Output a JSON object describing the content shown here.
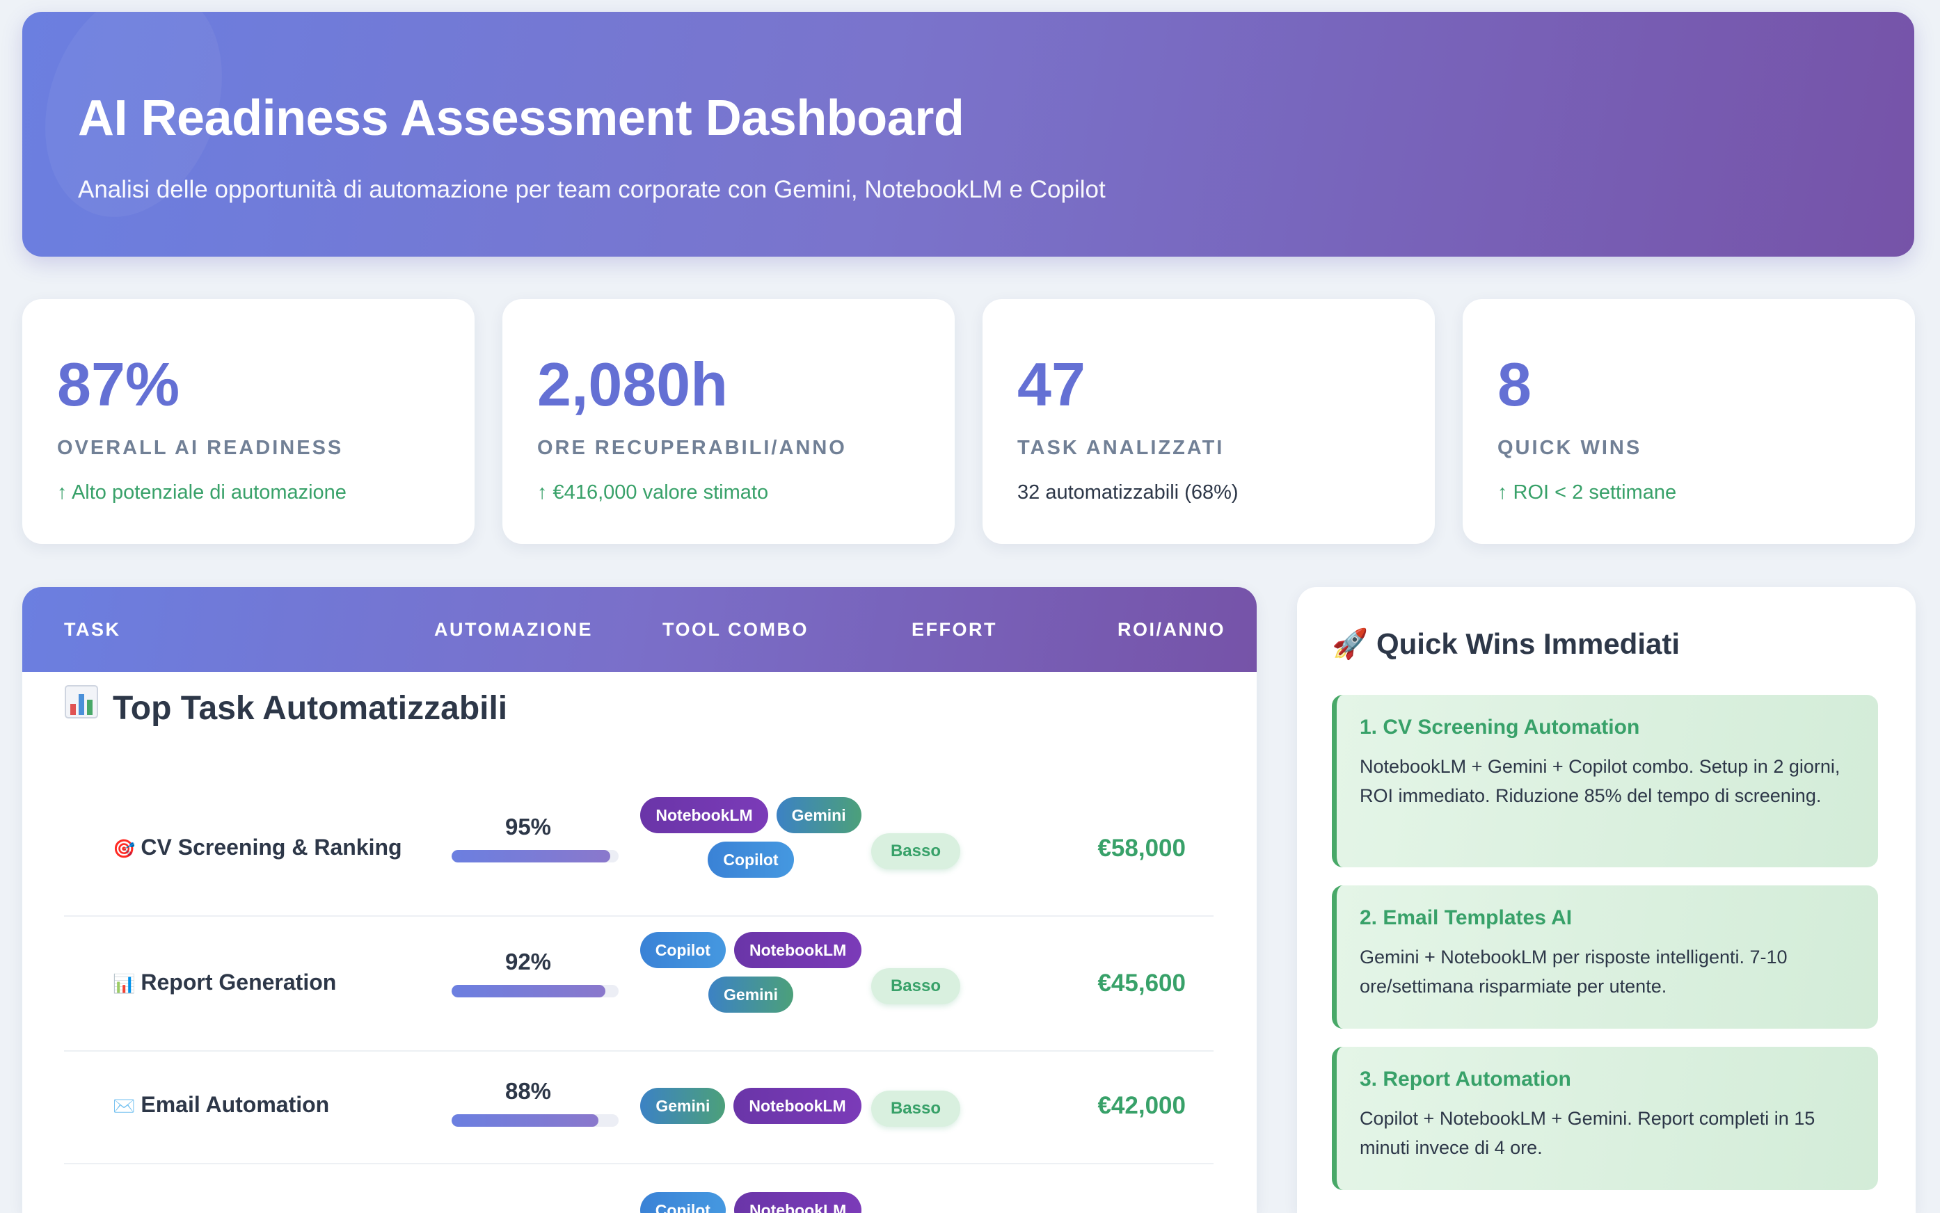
{
  "header": {
    "title": "AI Readiness Assessment Dashboard",
    "subtitle": "Analisi delle opportunità di automazione per team corporate con Gemini, NotebookLM e Copilot"
  },
  "stats": [
    {
      "value": "87%",
      "label": "OVERALL AI READINESS",
      "sub": "↑ Alto potenziale di automazione"
    },
    {
      "value": "2,080h",
      "label": "ORE RECUPERABILI/ANNO",
      "sub": "↑ €416,000 valore stimato"
    },
    {
      "value": "47",
      "label": "TASK ANALIZZATI",
      "sub": "32 automatizzabili (68%)"
    },
    {
      "value": "8",
      "label": "QUICK WINS",
      "sub": "↑ ROI < 2 settimane"
    }
  ],
  "table": {
    "columns": [
      "TASK",
      "AUTOMAZIONE",
      "TOOL COMBO",
      "EFFORT",
      "ROI/ANNO"
    ],
    "section_title": "Top Task Automatizzabili",
    "section_icon": "bar-chart-icon",
    "rows": [
      {
        "icon": "🎯",
        "task": "CV Screening & Ranking",
        "automation": "95%",
        "automation_value": 0.95,
        "tools": [
          "NotebookLM",
          "Gemini",
          "Copilot"
        ],
        "effort": "Basso",
        "roi": "€58,000"
      },
      {
        "icon": "📊",
        "task": "Report Generation",
        "automation": "92%",
        "automation_value": 0.92,
        "tools": [
          "Copilot",
          "NotebookLM",
          "Gemini"
        ],
        "effort": "Basso",
        "roi": "€45,600"
      },
      {
        "icon": "✉️",
        "task": "Email Automation",
        "automation": "88%",
        "automation_value": 0.88,
        "tools": [
          "Gemini",
          "NotebookLM"
        ],
        "effort": "Basso",
        "roi": "€42,000"
      },
      {
        "icon": "",
        "task": "",
        "automation": "",
        "automation_value": null,
        "tools": [
          "Copilot",
          "NotebookLM"
        ],
        "effort": "",
        "roi": ""
      }
    ]
  },
  "quick_wins": {
    "title": "🚀 Quick Wins Immediati",
    "items": [
      {
        "title": "1. CV Screening Automation",
        "text": "NotebookLM + Gemini + Copilot combo. Setup in 2 giorni, ROI immediato. Riduzione 85% del tempo di screening."
      },
      {
        "title": "2. Email Templates AI",
        "text": "Gemini + NotebookLM per risposte intelligenti. 7-10 ore/settimana risparmiate per utente."
      },
      {
        "title": "3. Report Automation",
        "text": "Copilot + NotebookLM + Gemini. Report completi in 15 minuti invece di 4 ore."
      }
    ]
  },
  "colors": {
    "accent": "#6470d4",
    "positive": "#38a169",
    "notebooklm": "#6a35a8",
    "gemini": "#3c82c4",
    "copilot": "#3a82d6"
  }
}
